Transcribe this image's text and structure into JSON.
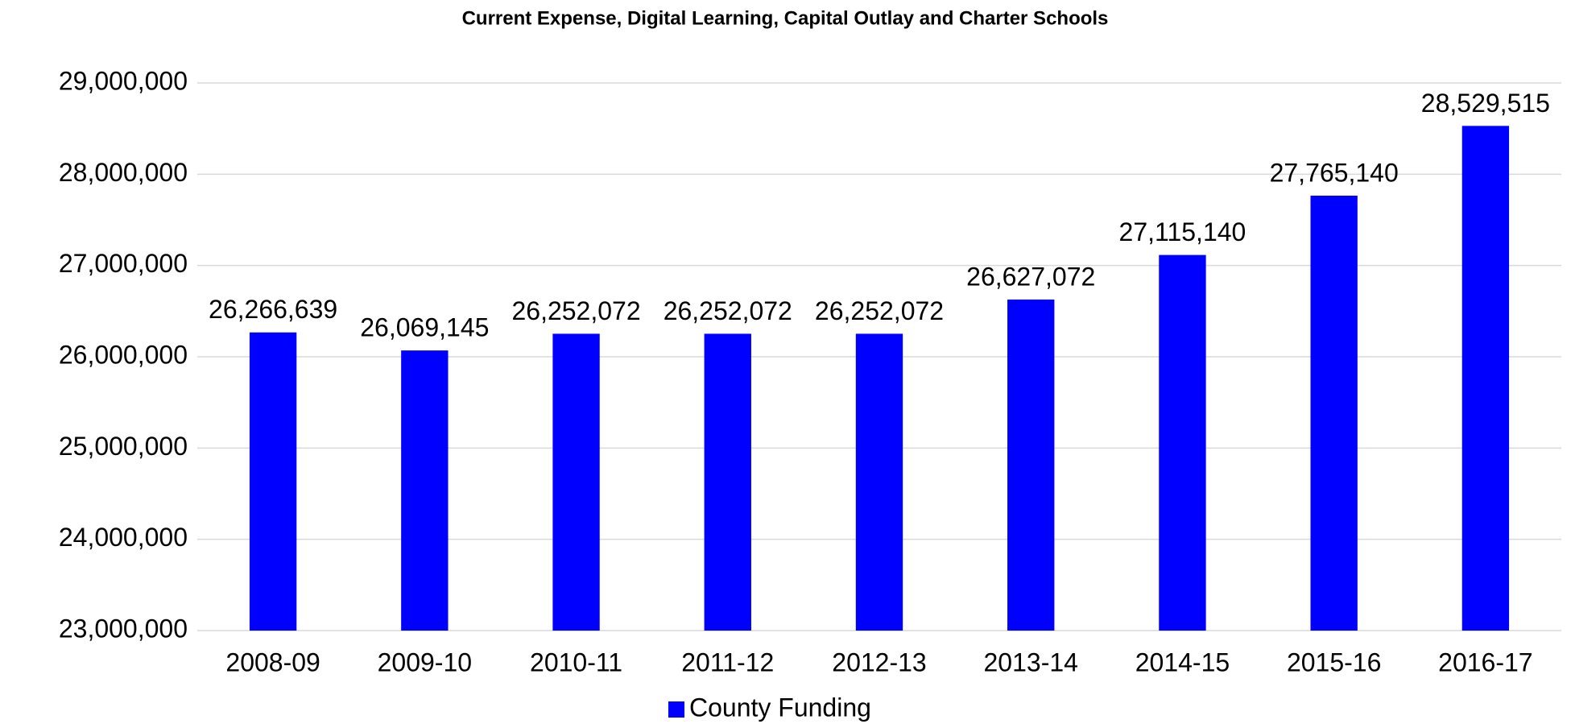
{
  "chart_data": {
    "type": "bar",
    "title": "Current Expense, Digital Learning, Capital Outlay and Charter Schools",
    "categories": [
      "2008-09",
      "2009-10",
      "2010-11",
      "2011-12",
      "2012-13",
      "2013-14",
      "2014-15",
      "2015-16",
      "2016-17"
    ],
    "series": [
      {
        "name": "County Funding",
        "color": "#0000ff",
        "values": [
          26266639,
          26069145,
          26252072,
          26252072,
          26252072,
          26627072,
          27115140,
          27765140,
          28529515
        ],
        "value_labels": [
          "26,266,639",
          "26,069,145",
          "26,252,072",
          "26,252,072",
          "26,252,072",
          "26,627,072",
          "27,115,140",
          "27,765,140",
          "28,529,515"
        ]
      }
    ],
    "ylim": [
      23000000,
      29000000
    ],
    "yticks": [
      {
        "value": 23000000,
        "label": "23,000,000"
      },
      {
        "value": 24000000,
        "label": "24,000,000"
      },
      {
        "value": 25000000,
        "label": "25,000,000"
      },
      {
        "value": 26000000,
        "label": "26,000,000"
      },
      {
        "value": 27000000,
        "label": "27,000,000"
      },
      {
        "value": 28000000,
        "label": "28,000,000"
      },
      {
        "value": 29000000,
        "label": "29,000,000"
      }
    ],
    "grid": true,
    "legend": "bottom"
  }
}
